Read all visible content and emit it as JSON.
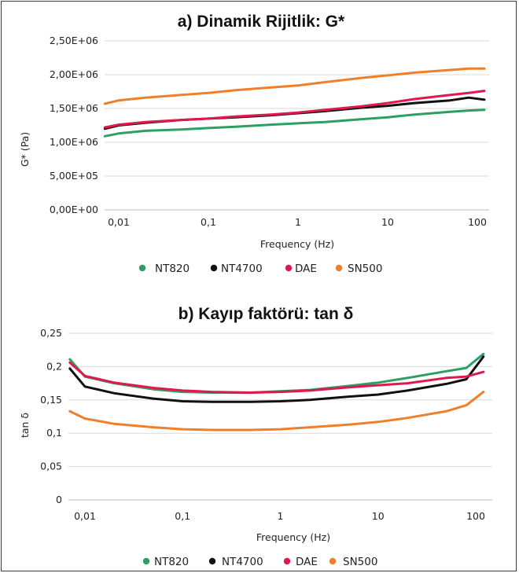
{
  "chart_data": [
    {
      "type": "line",
      "title": "a) Dinamik Rijitlik: G*",
      "xlabel": "Frequency (Hz)",
      "ylabel": "G* (Pa)",
      "x_scale": "log",
      "x_ticks": [
        0.01,
        0.1,
        1,
        10,
        100
      ],
      "x_tick_labels": [
        "0,01",
        "0,1",
        "1",
        "10",
        "100"
      ],
      "y_ticks": [
        0,
        500000,
        1000000,
        1500000,
        2000000,
        2500000
      ],
      "y_tick_labels": [
        "0,00E+00",
        "5,00E+05",
        "1,00E+06",
        "1,50E+06",
        "2,00E+06",
        "2,50E+06"
      ],
      "ylim": [
        0,
        2500000
      ],
      "grid": true,
      "legend": "bottom",
      "x": [
        0.007,
        0.01,
        0.02,
        0.05,
        0.1,
        0.2,
        0.5,
        1,
        2,
        5,
        10,
        20,
        50,
        80,
        120
      ],
      "series": [
        {
          "name": "NT820",
          "color": "#2e9e62",
          "values": [
            1090000,
            1130000,
            1170000,
            1190000,
            1210000,
            1230000,
            1260000,
            1280000,
            1300000,
            1340000,
            1370000,
            1410000,
            1450000,
            1470000,
            1480000
          ]
        },
        {
          "name": "NT4700",
          "color": "#111111",
          "values": [
            1200000,
            1250000,
            1290000,
            1330000,
            1350000,
            1370000,
            1400000,
            1430000,
            1460000,
            1510000,
            1540000,
            1580000,
            1620000,
            1660000,
            1630000
          ]
        },
        {
          "name": "DAE",
          "color": "#e0184f",
          "values": [
            1220000,
            1260000,
            1300000,
            1330000,
            1350000,
            1380000,
            1410000,
            1440000,
            1480000,
            1530000,
            1580000,
            1640000,
            1700000,
            1730000,
            1760000
          ]
        },
        {
          "name": "SN500",
          "color": "#f07f2a",
          "values": [
            1570000,
            1620000,
            1660000,
            1700000,
            1730000,
            1770000,
            1810000,
            1840000,
            1890000,
            1950000,
            1990000,
            2030000,
            2070000,
            2090000,
            2090000
          ]
        }
      ]
    },
    {
      "type": "line",
      "title": "b) Kayıp faktörü: tan δ",
      "xlabel": "Frequency (Hz)",
      "ylabel": "tan δ",
      "x_scale": "log",
      "x_ticks": [
        0.01,
        0.1,
        1,
        10,
        100
      ],
      "x_tick_labels": [
        "0,01",
        "0,1",
        "1",
        "10",
        "100"
      ],
      "y_ticks": [
        0,
        0.05,
        0.1,
        0.15,
        0.2,
        0.25
      ],
      "y_tick_labels": [
        "0",
        "0,05",
        "0,1",
        "0,15",
        "0,2",
        "0,25"
      ],
      "ylim": [
        0,
        0.25
      ],
      "grid": true,
      "legend": "bottom",
      "x": [
        0.007,
        0.01,
        0.02,
        0.05,
        0.1,
        0.2,
        0.5,
        1,
        2,
        5,
        10,
        20,
        50,
        80,
        120
      ],
      "series": [
        {
          "name": "NT820",
          "color": "#2e9e62",
          "values": [
            0.211,
            0.185,
            0.175,
            0.166,
            0.162,
            0.161,
            0.161,
            0.163,
            0.165,
            0.171,
            0.176,
            0.183,
            0.193,
            0.198,
            0.219
          ]
        },
        {
          "name": "NT4700",
          "color": "#111111",
          "values": [
            0.197,
            0.17,
            0.16,
            0.152,
            0.148,
            0.147,
            0.147,
            0.148,
            0.15,
            0.155,
            0.158,
            0.164,
            0.174,
            0.181,
            0.215
          ]
        },
        {
          "name": "DAE",
          "color": "#e0184f",
          "values": [
            0.206,
            0.186,
            0.176,
            0.168,
            0.164,
            0.162,
            0.161,
            0.162,
            0.164,
            0.169,
            0.172,
            0.175,
            0.183,
            0.185,
            0.192
          ]
        },
        {
          "name": "SN500",
          "color": "#f07f2a",
          "values": [
            0.133,
            0.122,
            0.114,
            0.109,
            0.106,
            0.105,
            0.105,
            0.106,
            0.109,
            0.113,
            0.117,
            0.123,
            0.133,
            0.142,
            0.162
          ]
        }
      ]
    }
  ]
}
